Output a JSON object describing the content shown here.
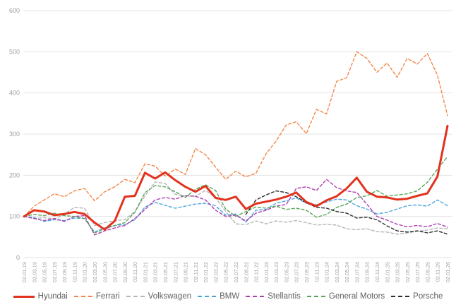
{
  "chart_data": {
    "type": "line",
    "title": "",
    "xlabel": "",
    "ylabel": "",
    "ylim": [
      0,
      600
    ],
    "y_ticks": [
      0,
      100,
      200,
      300,
      400,
      500,
      600
    ],
    "grid": true,
    "legend_position": "bottom",
    "x_labels": [
      "02.01.19",
      "02.03.19",
      "02.05.19",
      "02.07.19",
      "02.09.19",
      "02.11.19",
      "02.01.20",
      "02.03.20",
      "02.05.20",
      "02.07.20",
      "02.09.20",
      "02.11.20",
      "02.01.21",
      "02.03.21",
      "02.05.21",
      "02.07.21",
      "02.09.21",
      "02.11.21",
      "02.01.22",
      "02.03.22",
      "02.05.22",
      "02.07.22",
      "02.09.22",
      "02.11.22",
      "02.01.23",
      "02.03.23",
      "02.05.23",
      "02.07.23",
      "02.09.23",
      "02.11.23",
      "02.01.24",
      "02.03.24",
      "02.05.24",
      "02.07.24",
      "02.09.24",
      "02.11.24",
      "02.01.25",
      "02.03.25",
      "02.05.25",
      "02.07.25",
      "02.09.25",
      "02.11.25",
      "02.01.26"
    ],
    "series": [
      {
        "name": "Hyundai",
        "color": "#e2321e",
        "style": "solid",
        "width": 3,
        "z": 10,
        "values": [
          100,
          115,
          112,
          103,
          106,
          111,
          106,
          85,
          68,
          89,
          148,
          150,
          206,
          192,
          207,
          188,
          172,
          160,
          174,
          145,
          140,
          148,
          118,
          131,
          136,
          141,
          148,
          158,
          135,
          125,
          139,
          149,
          168,
          194,
          160,
          148,
          146,
          141,
          143,
          150,
          156,
          197,
          320
        ]
      },
      {
        "name": "Ferrari",
        "color": "#f58648",
        "style": "dashed",
        "width": 1.4,
        "z": 9,
        "values": [
          100,
          125,
          140,
          155,
          148,
          162,
          168,
          138,
          160,
          172,
          190,
          182,
          228,
          222,
          198,
          215,
          202,
          265,
          250,
          220,
          190,
          210,
          196,
          205,
          252,
          283,
          322,
          330,
          301,
          360,
          349,
          428,
          437,
          500,
          484,
          450,
          473,
          438,
          484,
          470,
          496,
          443,
          345
        ]
      },
      {
        "name": "Volkswagen",
        "color": "#b5b5b5",
        "style": "dashed",
        "width": 1.4,
        "z": 1,
        "values": [
          100,
          95,
          97,
          94,
          105,
          122,
          120,
          78,
          85,
          90,
          92,
          112,
          150,
          184,
          180,
          154,
          149,
          149,
          163,
          146,
          112,
          82,
          80,
          89,
          82,
          89,
          86,
          90,
          85,
          79,
          81,
          79,
          70,
          68,
          70,
          63,
          62,
          57,
          60,
          64,
          67,
          72,
          70
        ]
      },
      {
        "name": "BMW",
        "color": "#4aa5dd",
        "style": "dashed",
        "width": 1.4,
        "z": 2,
        "values": [
          100,
          97,
          88,
          92,
          90,
          96,
          95,
          62,
          72,
          78,
          80,
          92,
          123,
          134,
          127,
          120,
          125,
          130,
          132,
          126,
          103,
          106,
          86,
          115,
          117,
          132,
          138,
          145,
          132,
          128,
          135,
          142,
          140,
          126,
          118,
          106,
          110,
          118,
          126,
          128,
          125,
          140,
          126
        ]
      },
      {
        "name": "Stellantis",
        "color": "#b13eb2",
        "style": "dashed",
        "width": 1.4,
        "z": 3,
        "values": [
          100,
          95,
          90,
          95,
          88,
          100,
          102,
          55,
          65,
          72,
          78,
          95,
          117,
          140,
          146,
          142,
          151,
          149,
          140,
          115,
          100,
          103,
          89,
          108,
          115,
          125,
          129,
          168,
          172,
          163,
          190,
          170,
          162,
          158,
          130,
          100,
          91,
          81,
          75,
          78,
          75,
          83,
          74
        ]
      },
      {
        "name": "General Motors",
        "color": "#58a75a",
        "style": "dashed",
        "width": 1.4,
        "z": 4,
        "values": [
          100,
          105,
          102,
          108,
          102,
          100,
          95,
          60,
          70,
          78,
          85,
          110,
          158,
          175,
          172,
          160,
          146,
          166,
          177,
          163,
          118,
          100,
          112,
          123,
          120,
          125,
          117,
          120,
          115,
          98,
          105,
          122,
          130,
          146,
          150,
          163,
          149,
          152,
          155,
          162,
          183,
          215,
          245
        ]
      },
      {
        "name": "Porsche",
        "color": "#2b2b2b",
        "style": "dashed",
        "width": 1.4,
        "z": 5,
        "values": [
          null,
          null,
          null,
          null,
          null,
          null,
          null,
          null,
          null,
          null,
          null,
          null,
          null,
          null,
          null,
          null,
          null,
          null,
          null,
          null,
          null,
          null,
          105,
          140,
          152,
          162,
          158,
          148,
          133,
          122,
          120,
          112,
          108,
          96,
          98,
          92,
          77,
          65,
          62,
          65,
          60,
          65,
          57
        ]
      }
    ],
    "colors": {
      "grid": "#e3e3e3",
      "axis_label": "#9e9e9e",
      "legend_text": "#5f5f5f",
      "background": "#ffffff"
    }
  }
}
